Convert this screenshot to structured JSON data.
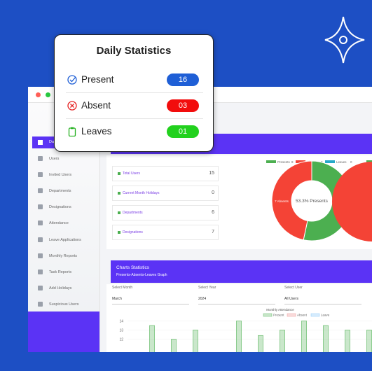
{
  "card": {
    "title": "Daily Statistics",
    "rows": [
      {
        "label": "Present",
        "value": "16"
      },
      {
        "label": "Absent",
        "value": "03"
      },
      {
        "label": "Leaves",
        "value": "01"
      }
    ]
  },
  "sidebar": {
    "active": "Dashboard",
    "items": [
      "Users",
      "Invited Users",
      "Departments",
      "Designations",
      "Attendance",
      "Leave Applications",
      "Monthly Reports",
      "Task Reports",
      "Add Holidays",
      "Suspicious Users"
    ]
  },
  "stats": [
    {
      "label": "Total Users",
      "value": 15
    },
    {
      "label": "Current Month Holidays",
      "value": 0
    },
    {
      "label": "Departments",
      "value": 6
    },
    {
      "label": "Designations",
      "value": 7
    }
  ],
  "donut": {
    "legend": [
      {
        "name": "Presents",
        "value": 8,
        "color": "#4caf50"
      },
      {
        "name": "Absents",
        "value": 7,
        "color": "#f44336"
      },
      {
        "name": "Leaves",
        "value": 0,
        "color": "#26a9c8"
      }
    ],
    "center_label": "53.3% Presents",
    "slice_labels": [
      "8 Presents",
      "7 Absents"
    ]
  },
  "charts_panel": {
    "title": "Charts Statistics",
    "subtitle": "Presents-Absents-Leaves Graph",
    "filters": [
      {
        "label": "Select Month",
        "value": "March"
      },
      {
        "label": "Select Year",
        "value": "2024"
      },
      {
        "label": "Select User",
        "value": "All Users"
      }
    ]
  },
  "chart_data": {
    "type": "bar",
    "title": "Monthly Attendance",
    "series": [
      {
        "name": "Present",
        "color": "#66bb6a",
        "values": [
          13.5,
          12,
          13,
          null,
          14,
          12.4,
          13,
          14,
          13.5,
          13,
          13
        ]
      },
      {
        "name": "Absent",
        "color": "#ef9a9a",
        "values": []
      },
      {
        "name": "Leave",
        "color": "#90caf9",
        "values": []
      }
    ],
    "ylim": [
      11,
      14.5
    ],
    "yticks": [
      12,
      13,
      14
    ],
    "grid": true
  }
}
